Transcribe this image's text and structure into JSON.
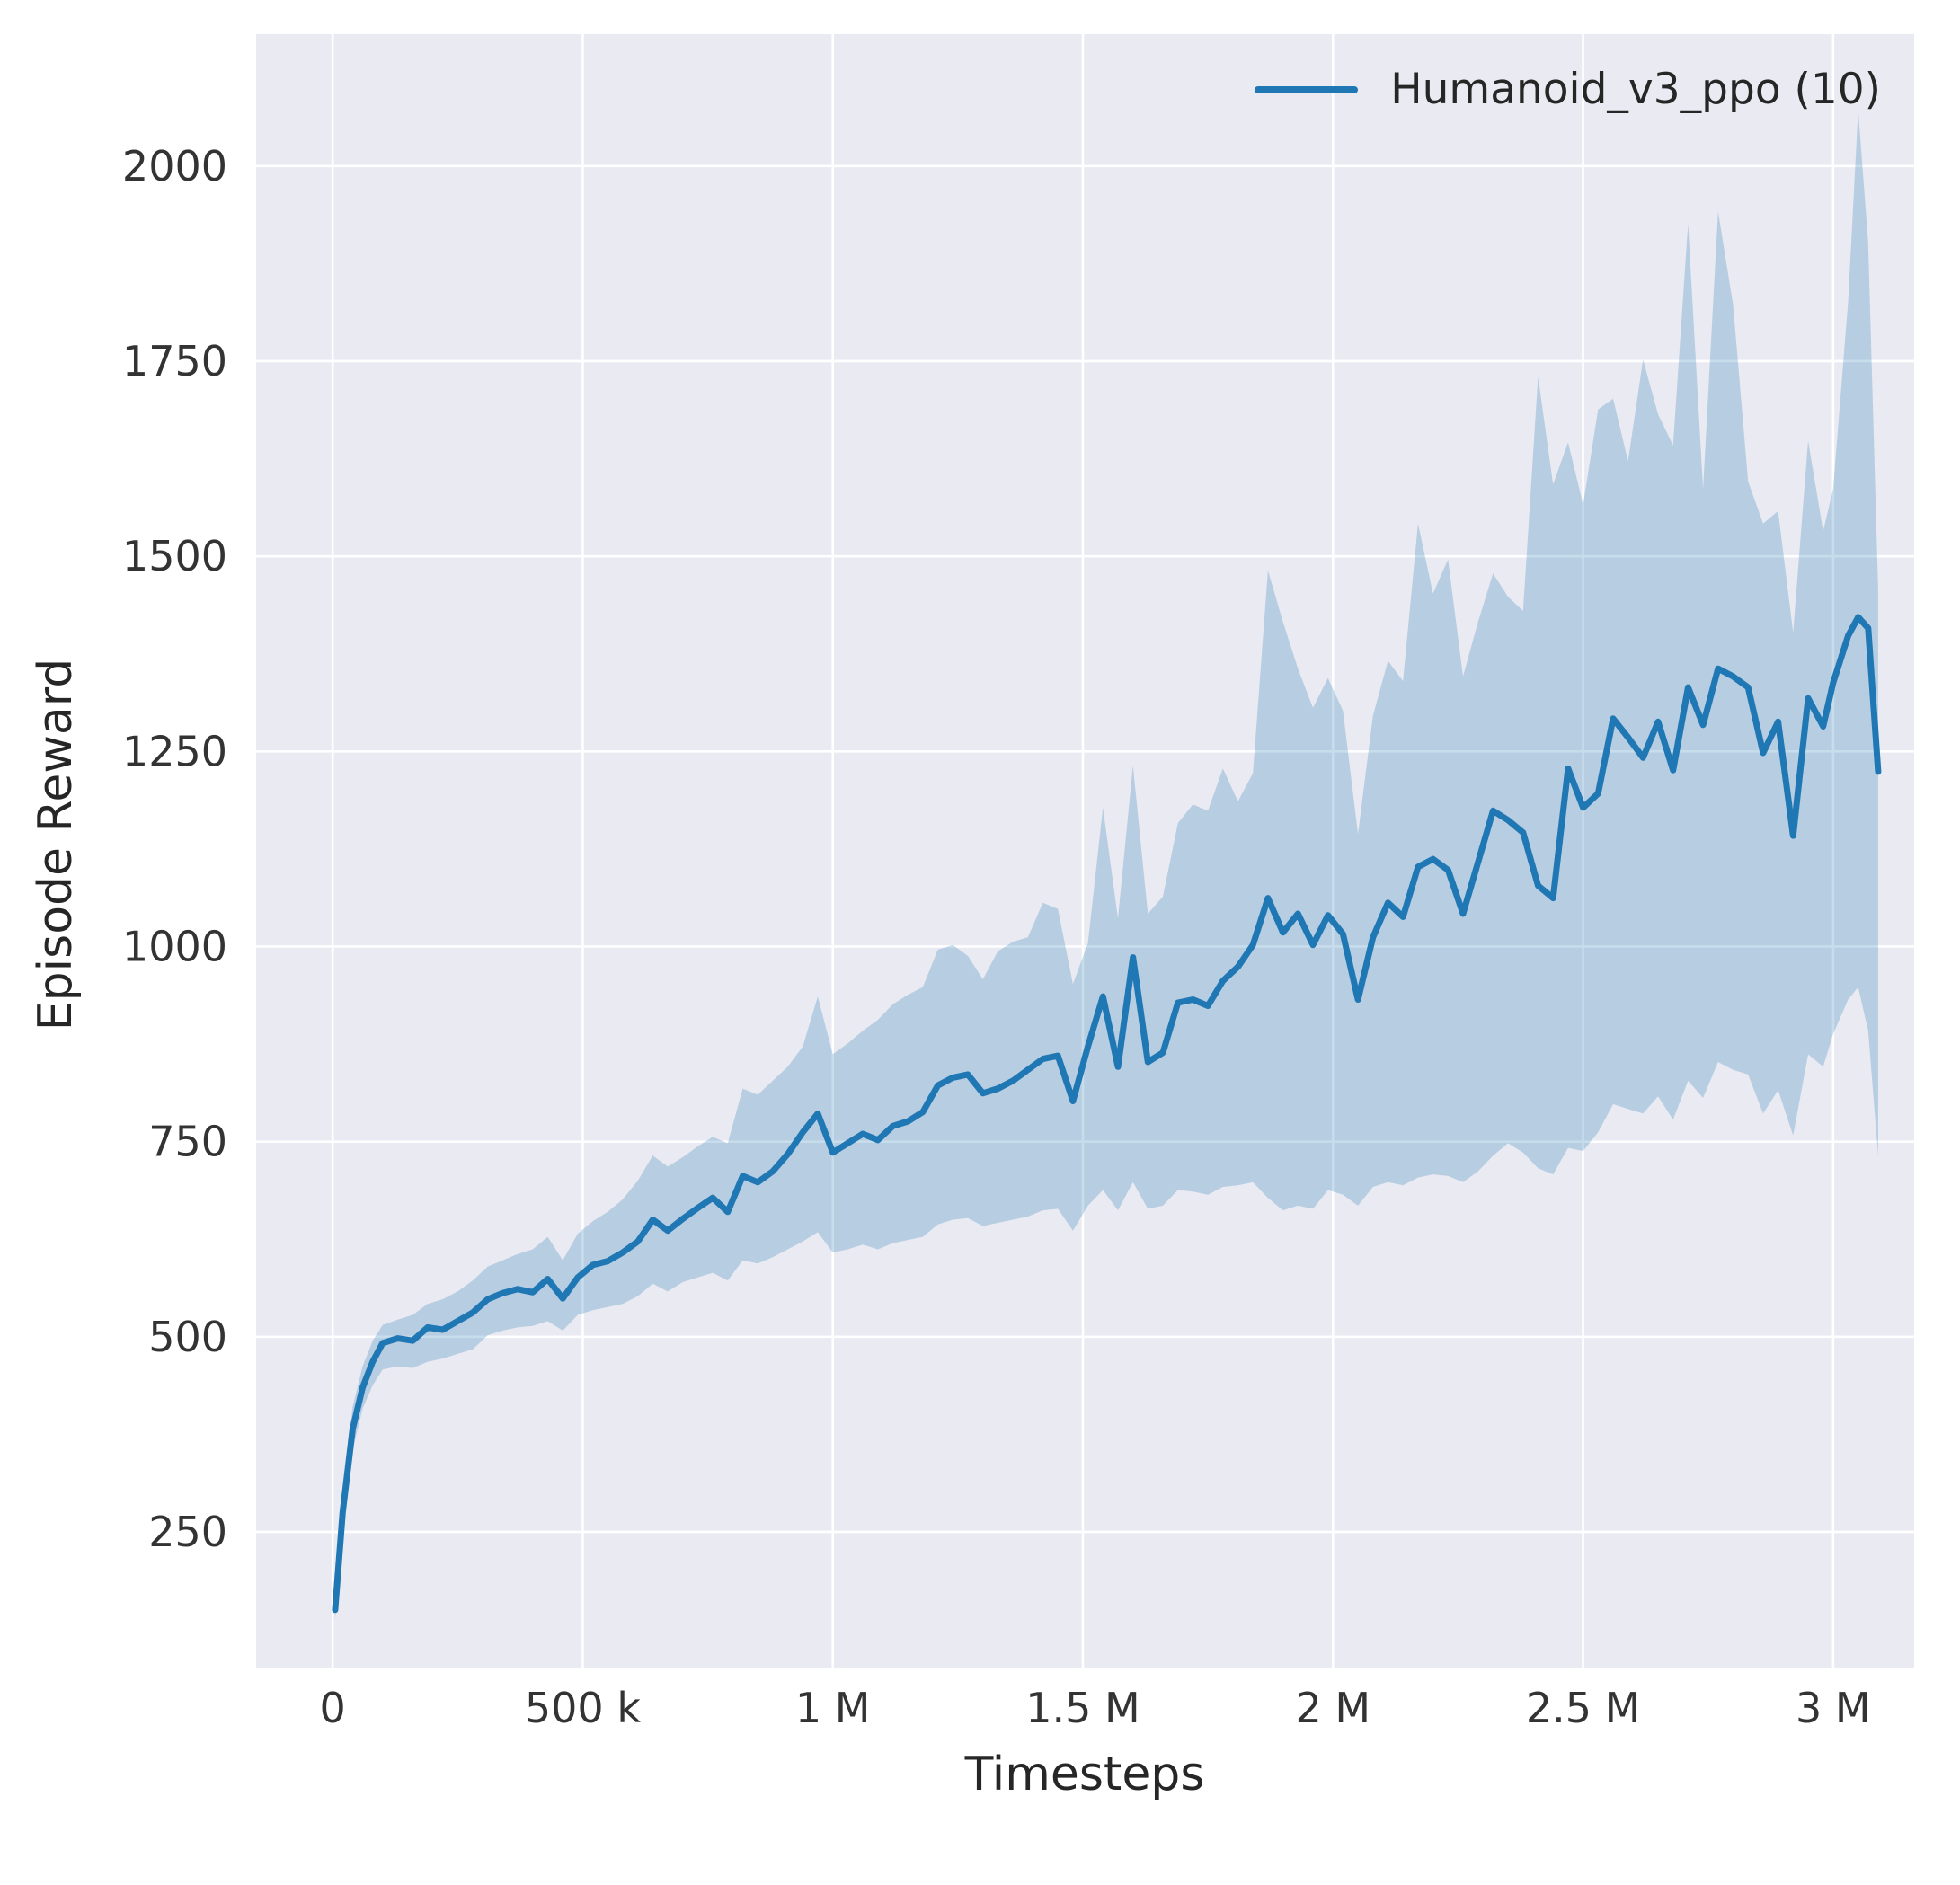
{
  "figure": {
    "background_color": "#ffffff",
    "plot_background_color": "#eaeaf2",
    "grid_color": "#ffffff",
    "text_color": "#333333"
  },
  "chart_data": {
    "type": "line",
    "title": "",
    "xlabel": "Timesteps",
    "ylabel": "Episode Reward",
    "grid": true,
    "legend_position": "upper right",
    "xlim": [
      -0.153,
      3.162
    ],
    "ylim": [
      75,
      2169
    ],
    "x_ticks": {
      "values": [
        0,
        0.5,
        1,
        1.5,
        2,
        2.5,
        3
      ],
      "labels": [
        "0",
        "500 k",
        "1 M",
        "1.5 M",
        "2 M",
        "2.5 M",
        "3 M"
      ]
    },
    "y_ticks": {
      "values": [
        250,
        500,
        750,
        1000,
        1250,
        1500,
        1750,
        2000
      ],
      "labels": [
        "250",
        "500",
        "750",
        "1000",
        "1250",
        "1500",
        "1750",
        "2000"
      ]
    },
    "x_units": "timesteps (values in millions)",
    "series": [
      {
        "name": "Humanoid_v3_ppo (10)",
        "color": "#1f77b4",
        "band_color": "rgba(31,119,180,0.25)",
        "line_width": 7,
        "points_format": [
          "x_millions",
          "mean",
          "band_lower",
          "band_upper"
        ],
        "points": [
          [
            0.005,
            150,
            138,
            163
          ],
          [
            0.02,
            275,
            255,
            298
          ],
          [
            0.04,
            382,
            355,
            410
          ],
          [
            0.06,
            435,
            408,
            462
          ],
          [
            0.08,
            468,
            438,
            495
          ],
          [
            0.1,
            492,
            458,
            515
          ],
          [
            0.13,
            498,
            462,
            522
          ],
          [
            0.16,
            495,
            460,
            528
          ],
          [
            0.19,
            512,
            468,
            542
          ],
          [
            0.22,
            509,
            472,
            548
          ],
          [
            0.25,
            520,
            478,
            558
          ],
          [
            0.28,
            531,
            484,
            572
          ],
          [
            0.31,
            548,
            502,
            590
          ],
          [
            0.34,
            556,
            508,
            598
          ],
          [
            0.37,
            561,
            512,
            606
          ],
          [
            0.4,
            557,
            514,
            612
          ],
          [
            0.43,
            574,
            520,
            628
          ],
          [
            0.46,
            549,
            508,
            598
          ],
          [
            0.49,
            576,
            528,
            632
          ],
          [
            0.52,
            592,
            534,
            648
          ],
          [
            0.55,
            597,
            538,
            660
          ],
          [
            0.58,
            608,
            542,
            676
          ],
          [
            0.61,
            622,
            552,
            700
          ],
          [
            0.64,
            650,
            568,
            732
          ],
          [
            0.67,
            636,
            558,
            718
          ],
          [
            0.7,
            651,
            570,
            730
          ],
          [
            0.73,
            665,
            576,
            744
          ],
          [
            0.76,
            678,
            582,
            756
          ],
          [
            0.79,
            660,
            572,
            748
          ],
          [
            0.82,
            706,
            598,
            818
          ],
          [
            0.85,
            698,
            594,
            810
          ],
          [
            0.88,
            712,
            602,
            828
          ],
          [
            0.91,
            734,
            612,
            846
          ],
          [
            0.94,
            762,
            622,
            872
          ],
          [
            0.97,
            786,
            634,
            936
          ],
          [
            1.0,
            736,
            608,
            862
          ],
          [
            1.03,
            748,
            612,
            876
          ],
          [
            1.06,
            760,
            618,
            892
          ],
          [
            1.09,
            752,
            612,
            906
          ],
          [
            1.12,
            770,
            620,
            926
          ],
          [
            1.15,
            776,
            624,
            938
          ],
          [
            1.18,
            788,
            628,
            948
          ],
          [
            1.21,
            822,
            644,
            996
          ],
          [
            1.24,
            832,
            650,
            1002
          ],
          [
            1.27,
            836,
            652,
            988
          ],
          [
            1.3,
            812,
            642,
            958
          ],
          [
            1.33,
            818,
            646,
            994
          ],
          [
            1.36,
            828,
            650,
            1006
          ],
          [
            1.39,
            842,
            654,
            1012
          ],
          [
            1.42,
            856,
            662,
            1056
          ],
          [
            1.45,
            860,
            664,
            1048
          ],
          [
            1.48,
            802,
            636,
            952
          ],
          [
            1.51,
            872,
            668,
            1004
          ],
          [
            1.54,
            936,
            688,
            1178
          ],
          [
            1.57,
            846,
            662,
            1036
          ],
          [
            1.6,
            986,
            698,
            1232
          ],
          [
            1.63,
            852,
            664,
            1042
          ],
          [
            1.66,
            864,
            668,
            1064
          ],
          [
            1.69,
            928,
            688,
            1158
          ],
          [
            1.72,
            932,
            686,
            1182
          ],
          [
            1.75,
            924,
            682,
            1174
          ],
          [
            1.78,
            956,
            692,
            1228
          ],
          [
            1.81,
            974,
            694,
            1186
          ],
          [
            1.84,
            1002,
            698,
            1222
          ],
          [
            1.87,
            1062,
            678,
            1482
          ],
          [
            1.9,
            1018,
            662,
            1416
          ],
          [
            1.93,
            1042,
            668,
            1356
          ],
          [
            1.96,
            1002,
            664,
            1306
          ],
          [
            1.99,
            1040,
            688,
            1344
          ],
          [
            2.02,
            1016,
            682,
            1302
          ],
          [
            2.05,
            932,
            668,
            1144
          ],
          [
            2.08,
            1012,
            692,
            1296
          ],
          [
            2.11,
            1056,
            698,
            1366
          ],
          [
            2.14,
            1038,
            694,
            1340
          ],
          [
            2.17,
            1102,
            704,
            1542
          ],
          [
            2.2,
            1112,
            708,
            1452
          ],
          [
            2.23,
            1098,
            706,
            1496
          ],
          [
            2.26,
            1042,
            698,
            1346
          ],
          [
            2.29,
            1108,
            712,
            1416
          ],
          [
            2.32,
            1174,
            732,
            1478
          ],
          [
            2.35,
            1162,
            748,
            1448
          ],
          [
            2.38,
            1146,
            736,
            1430
          ],
          [
            2.41,
            1078,
            716,
            1730
          ],
          [
            2.44,
            1062,
            708,
            1592
          ],
          [
            2.47,
            1228,
            742,
            1646
          ],
          [
            2.5,
            1178,
            738,
            1566
          ],
          [
            2.53,
            1196,
            762,
            1688
          ],
          [
            2.56,
            1292,
            798,
            1702
          ],
          [
            2.59,
            1268,
            792,
            1622
          ],
          [
            2.62,
            1242,
            786,
            1752
          ],
          [
            2.65,
            1288,
            808,
            1682
          ],
          [
            2.68,
            1226,
            778,
            1642
          ],
          [
            2.71,
            1332,
            828,
            1926
          ],
          [
            2.74,
            1284,
            806,
            1586
          ],
          [
            2.77,
            1356,
            852,
            1942
          ],
          [
            2.8,
            1346,
            842,
            1822
          ],
          [
            2.83,
            1332,
            836,
            1596
          ],
          [
            2.86,
            1248,
            786,
            1542
          ],
          [
            2.89,
            1288,
            816,
            1558
          ],
          [
            2.92,
            1142,
            758,
            1402
          ],
          [
            2.95,
            1318,
            862,
            1648
          ],
          [
            2.98,
            1282,
            846,
            1532
          ],
          [
            3.0,
            1338,
            888,
            1586
          ],
          [
            3.03,
            1398,
            932,
            1826
          ],
          [
            3.05,
            1422,
            948,
            2072
          ],
          [
            3.07,
            1408,
            892,
            1902
          ],
          [
            3.09,
            1224,
            732,
            1458
          ]
        ]
      }
    ]
  }
}
